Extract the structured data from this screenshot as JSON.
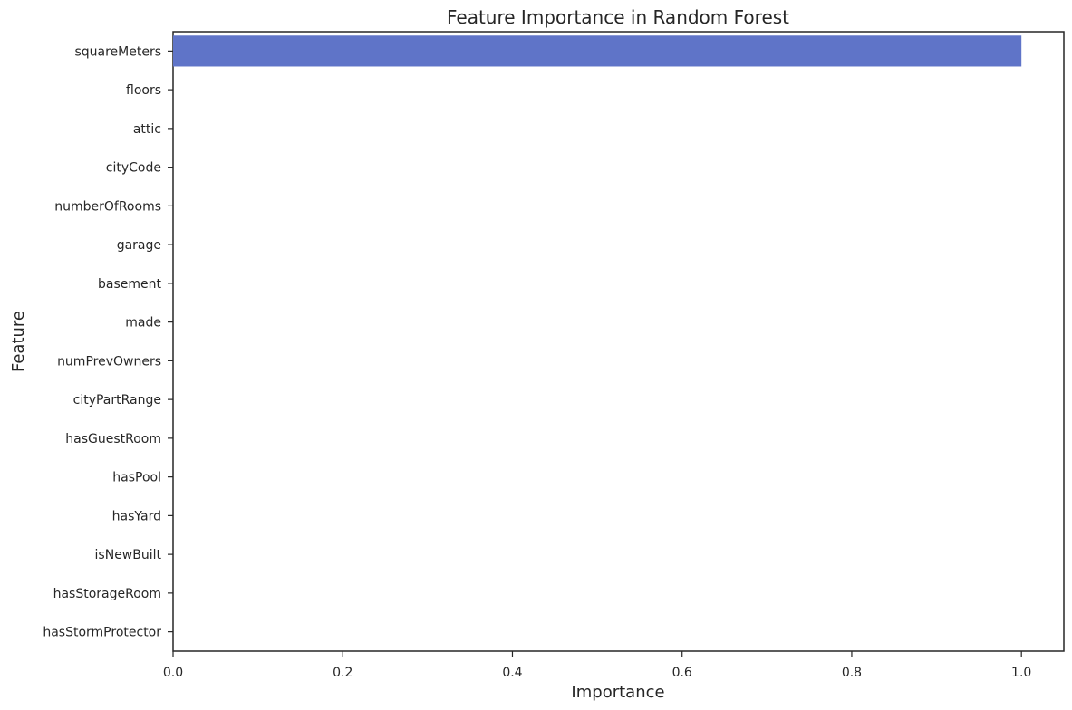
{
  "chart_data": {
    "type": "bar",
    "orientation": "horizontal",
    "title": "Feature Importance in Random Forest",
    "xlabel": "Importance",
    "ylabel": "Feature",
    "xlim": [
      0,
      1.05
    ],
    "xticks": [
      0.0,
      0.2,
      0.4,
      0.6,
      0.8,
      1.0
    ],
    "xtick_labels": [
      "0.0",
      "0.2",
      "0.4",
      "0.6",
      "0.8",
      "1.0"
    ],
    "categories": [
      "squareMeters",
      "floors",
      "attic",
      "cityCode",
      "numberOfRooms",
      "garage",
      "basement",
      "made",
      "numPrevOwners",
      "cityPartRange",
      "hasGuestRoom",
      "hasPool",
      "hasYard",
      "isNewBuilt",
      "hasStorageRoom",
      "hasStormProtector"
    ],
    "values": [
      1.0,
      0.0,
      0.0,
      0.0,
      0.0,
      0.0,
      0.0,
      0.0,
      0.0,
      0.0,
      0.0,
      0.0,
      0.0,
      0.0,
      0.0,
      0.0
    ],
    "bar_color": "#5f74c8",
    "grid": false,
    "legend": "none"
  }
}
